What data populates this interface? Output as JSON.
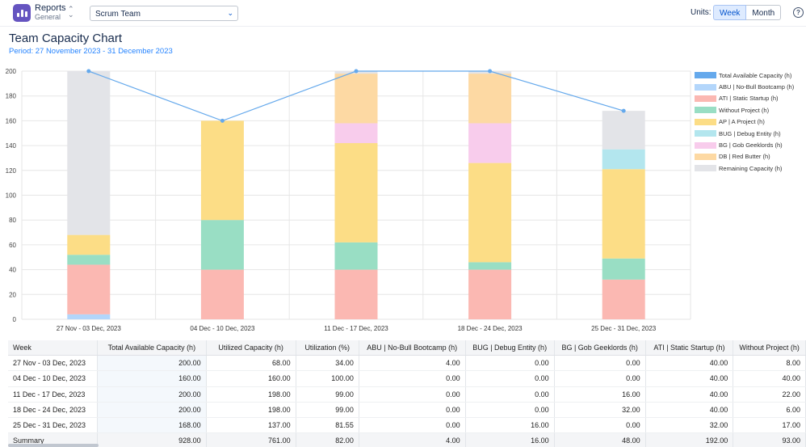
{
  "header": {
    "app_title": "Reports",
    "app_subtitle": "General",
    "team_select_value": "Scrum Team",
    "units_label": "Units:",
    "units_options": [
      "Week",
      "Month"
    ],
    "units_selected": "Week",
    "help_icon": "question-circle-icon"
  },
  "page": {
    "title": "Team Capacity Chart",
    "period": "Period: 27 November 2023 - 31 December 2023"
  },
  "colors": {
    "total_available": "#65a9ec",
    "ABU": "#b3d6fb",
    "ATI": "#fbb8b2",
    "without_project": "#99dec4",
    "AP": "#fcdd86",
    "BUG": "#b3e6ee",
    "BG": "#f8ccec",
    "DB": "#fdd9a3",
    "remaining": "#e3e4e8"
  },
  "chart_data": {
    "type": "bar",
    "stacked": true,
    "categories": [
      "27 Nov - 03 Dec, 2023",
      "04 Dec - 10 Dec, 2023",
      "11 Dec - 17 Dec, 2023",
      "18 Dec - 24 Dec, 2023",
      "25 Dec - 31 Dec, 2023"
    ],
    "ylim": [
      0,
      200
    ],
    "yticks": [
      0,
      20,
      40,
      60,
      80,
      100,
      120,
      140,
      160,
      180,
      200
    ],
    "grid": true,
    "legend_position": "right",
    "line_series": {
      "name": "Total Available Capacity (h)",
      "values": [
        200,
        160,
        200,
        200,
        168
      ],
      "color_key": "total_available"
    },
    "series": [
      {
        "name": "ABU | No-Bull Bootcamp (h)",
        "color_key": "ABU",
        "values": [
          4,
          0,
          0,
          0,
          0
        ]
      },
      {
        "name": "ATI | Static Startup (h)",
        "color_key": "ATI",
        "values": [
          40,
          40,
          40,
          40,
          32
        ]
      },
      {
        "name": "Without Project (h)",
        "color_key": "without_project",
        "values": [
          8,
          40,
          22,
          6,
          17
        ]
      },
      {
        "name": "AP | A Project (h)",
        "color_key": "AP",
        "values": [
          16,
          80,
          80,
          80,
          72
        ]
      },
      {
        "name": "BUG | Debug Entity (h)",
        "color_key": "BUG",
        "values": [
          0,
          0,
          0,
          0,
          16
        ]
      },
      {
        "name": "BG | Gob Geeklords (h)",
        "color_key": "BG",
        "values": [
          0,
          0,
          16,
          32,
          0
        ]
      },
      {
        "name": "DB | Red Butter (h)",
        "color_key": "DB",
        "values": [
          0,
          0,
          40,
          40,
          0
        ]
      },
      {
        "name": "Remaining Capacity (h)",
        "color_key": "remaining",
        "values": [
          132,
          0,
          2,
          2,
          31
        ]
      }
    ]
  },
  "table": {
    "columns": [
      "Week",
      "Total Available Capacity (h)",
      "Utilized Capacity (h)",
      "Utilization (%)",
      "ABU | No-Bull Bootcamp (h)",
      "BUG | Debug Entity (h)",
      "BG | Gob Geeklords (h)",
      "ATI | Static Startup (h)",
      "Without Project (h)"
    ],
    "rows": [
      [
        "27 Nov - 03 Dec, 2023",
        "200.00",
        "68.00",
        "34.00",
        "4.00",
        "0.00",
        "0.00",
        "40.00",
        "8.00"
      ],
      [
        "04 Dec - 10 Dec, 2023",
        "160.00",
        "160.00",
        "100.00",
        "0.00",
        "0.00",
        "0.00",
        "40.00",
        "40.00"
      ],
      [
        "11 Dec - 17 Dec, 2023",
        "200.00",
        "198.00",
        "99.00",
        "0.00",
        "0.00",
        "16.00",
        "40.00",
        "22.00"
      ],
      [
        "18 Dec - 24 Dec, 2023",
        "200.00",
        "198.00",
        "99.00",
        "0.00",
        "0.00",
        "32.00",
        "40.00",
        "6.00"
      ],
      [
        "25 Dec - 31 Dec, 2023",
        "168.00",
        "137.00",
        "81.55",
        "0.00",
        "16.00",
        "0.00",
        "32.00",
        "17.00"
      ]
    ],
    "summary": [
      "Summary",
      "928.00",
      "761.00",
      "82.00",
      "4.00",
      "16.00",
      "48.00",
      "192.00",
      "93.00"
    ]
  }
}
